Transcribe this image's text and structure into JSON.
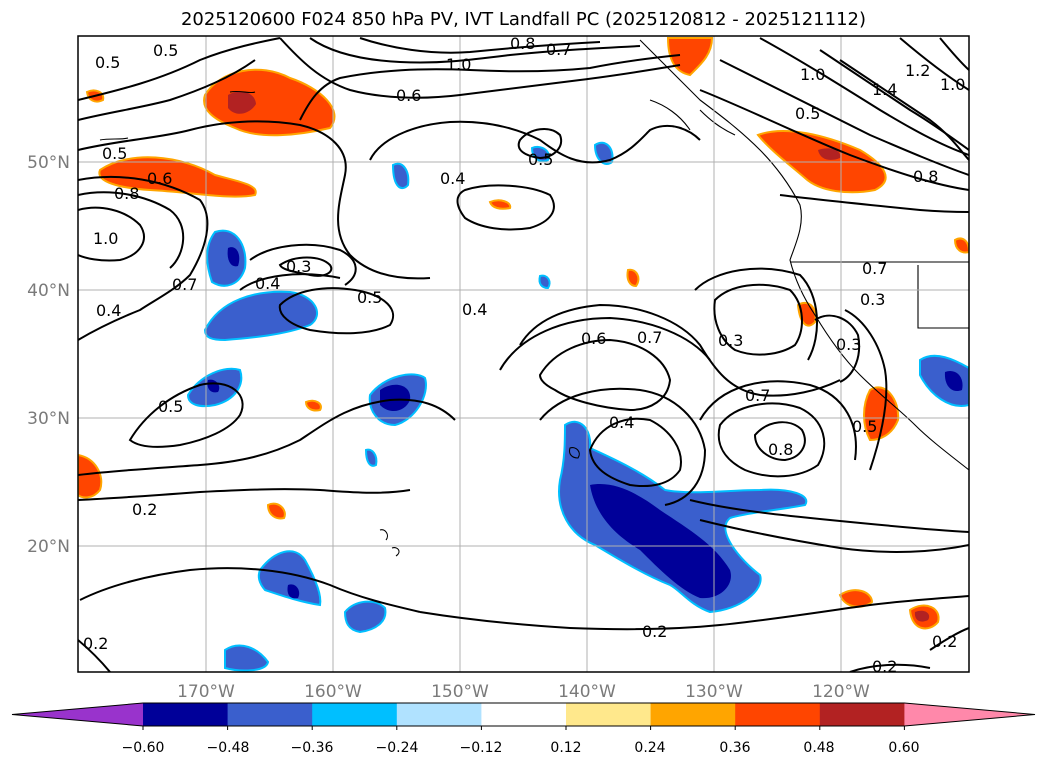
{
  "title": "2025120600 F024 850 hPa PV, IVT Landfall PC (2025120812 - 2025121112)",
  "lat_labels": [
    "50°N",
    "40°N",
    "30°N",
    "20°N"
  ],
  "lon_labels": [
    "170°W",
    "160°W",
    "150°W",
    "140°W",
    "130°W",
    "120°W"
  ],
  "contour_labels": [
    "0.5",
    "0.5",
    "0.8",
    "0.7",
    "1.0",
    "0.6",
    "1.0",
    "1.4",
    "1.2",
    "1.0",
    "0.5",
    "0.5",
    "0.6",
    "0.8",
    "1.0",
    "0.4",
    "0.5",
    "0.8",
    "0.3",
    "0.4",
    "0.7",
    "0.5",
    "0.4",
    "0.7",
    "0.3",
    "0.3",
    "0.4",
    "0.6",
    "0.7",
    "0.3",
    "0.5",
    "0.7",
    "0.4",
    "0.8",
    "0.5",
    "0.2",
    "0.2",
    "0.2",
    "0.2",
    "0.2"
  ],
  "colorbar": {
    "ticks": [
      "−0.60",
      "−0.48",
      "−0.36",
      "−0.24",
      "−0.12",
      "0.12",
      "0.24",
      "0.36",
      "0.48",
      "0.60"
    ],
    "colors": [
      "#9933cc",
      "#000099",
      "#3a5fcd",
      "#00bfff",
      "#b0e2ff",
      "#ffffff",
      "#ffe88c",
      "#ffa500",
      "#ff4500",
      "#b22222",
      "#ff88aa"
    ]
  }
}
